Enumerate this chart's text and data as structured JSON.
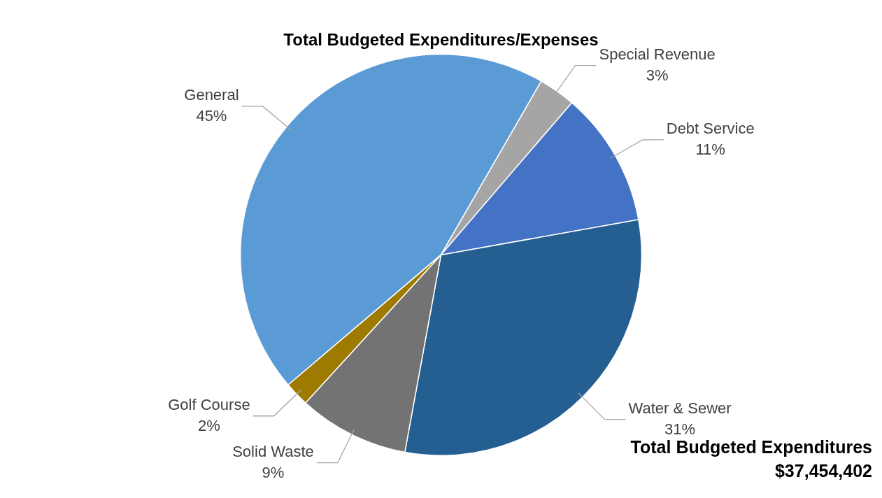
{
  "chart_data": {
    "type": "pie",
    "title": "Total Budgeted Expenditures/Expenses",
    "categories": [
      "General",
      "Special Revenue",
      "Debt Service",
      "Water & Sewer",
      "Solid Waste",
      "Golf Course"
    ],
    "values": [
      45,
      3,
      11,
      31,
      9,
      2
    ],
    "value_labels": [
      "45%",
      "3%",
      "11%",
      "31%",
      "9%",
      "2%"
    ],
    "colors": [
      "#5b9bd5",
      "#a5a5a5",
      "#4472c4",
      "#255e91",
      "#737373",
      "#9e7b00"
    ],
    "legend": false,
    "annotations": [
      "Total Budgeted Expenditures",
      "$37,454,402"
    ]
  }
}
